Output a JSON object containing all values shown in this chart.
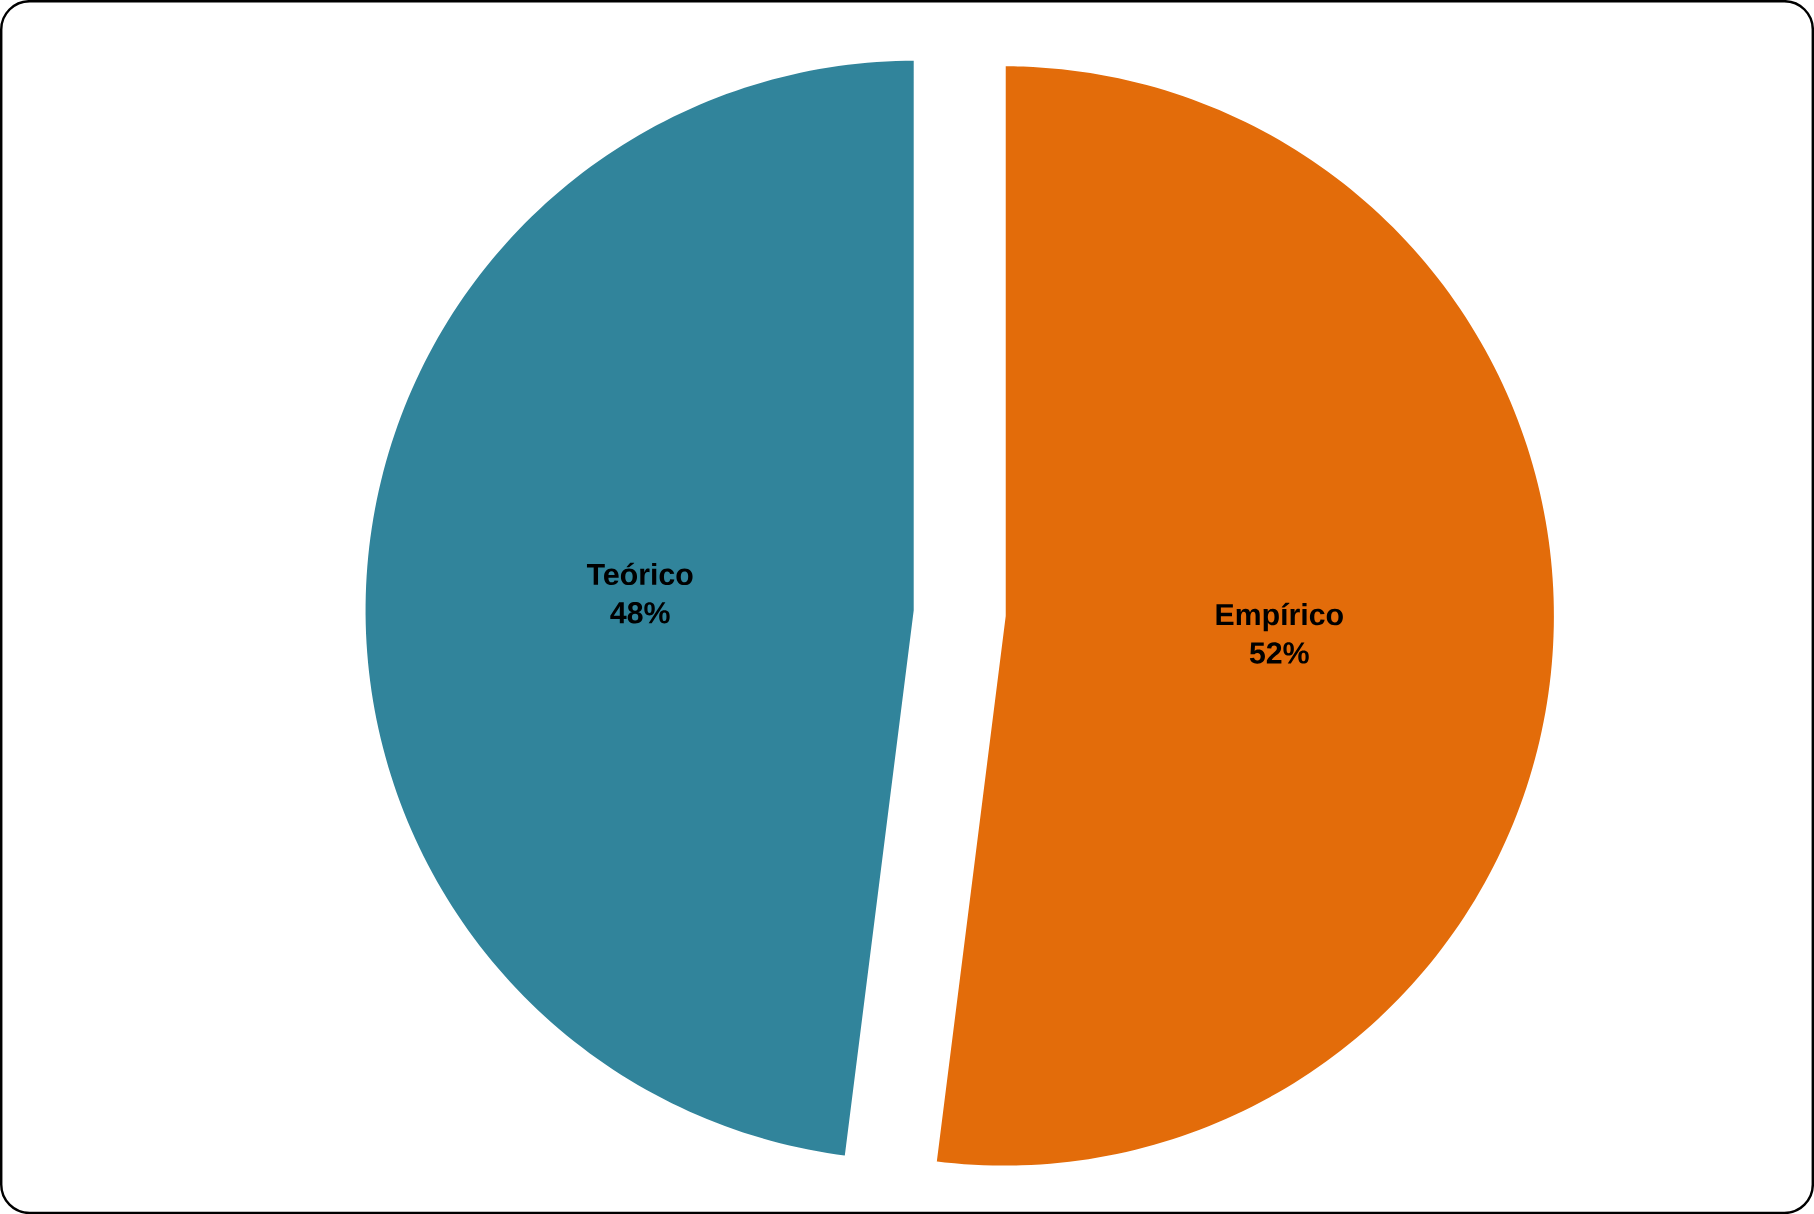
{
  "chart_data": {
    "type": "pie",
    "categories": [
      "Empírico",
      "Teórico"
    ],
    "values": [
      52,
      48
    ],
    "colors": [
      "#e36c0a",
      "#31849b"
    ],
    "value_labels": [
      "52%",
      "48%"
    ]
  }
}
